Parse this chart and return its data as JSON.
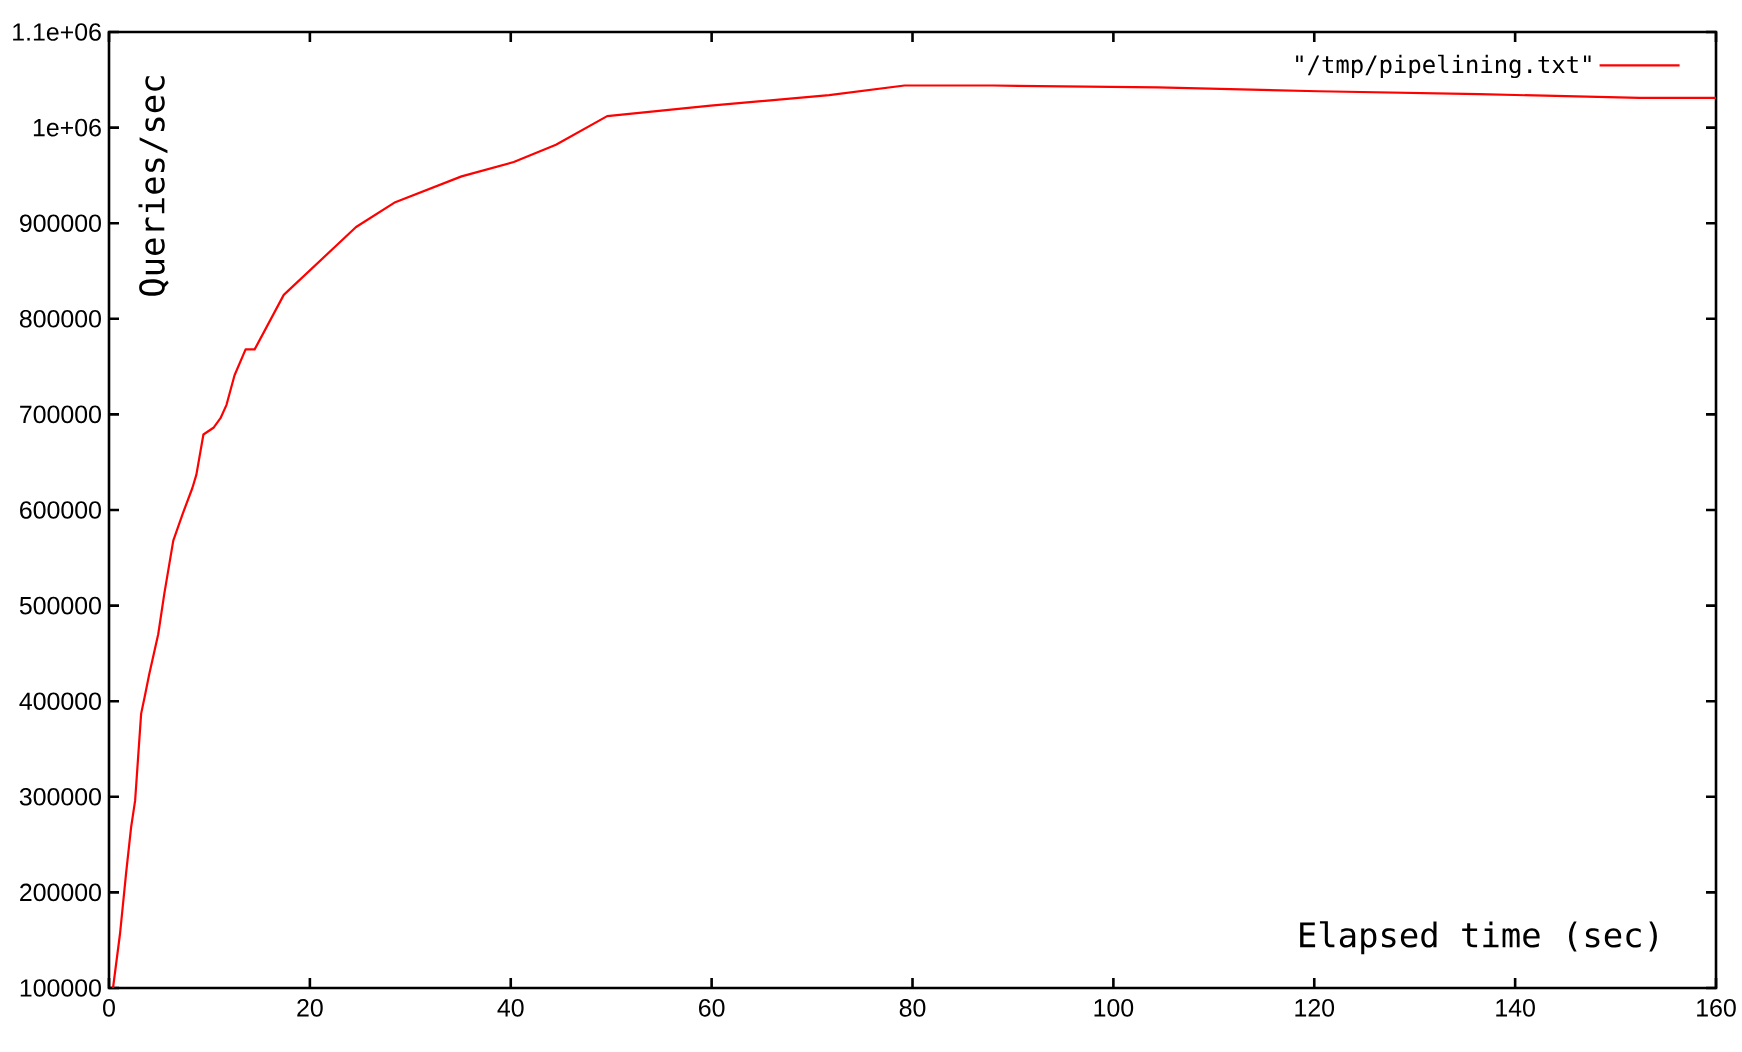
{
  "chart_data": {
    "type": "line",
    "xlabel": "Elapsed time (sec)",
    "ylabel": "Queries/sec",
    "x": [
      0.4,
      1.1,
      1.7,
      2.2,
      2.6,
      3.2,
      3.6,
      4.0,
      4.9,
      5.5,
      6.4,
      7.3,
      8.3,
      8.7,
      9.4,
      10.4,
      11.1,
      11.7,
      12.5,
      13.6,
      14.5,
      17.4,
      24.6,
      28.5,
      35.1,
      40.3,
      44.5,
      49.6,
      59.9,
      71.7,
      79.2,
      88.0,
      104.4,
      120.4,
      136.4,
      152.4,
      160
    ],
    "series": [
      {
        "name": "\"/tmp/pipelining.txt\"",
        "color": "#ff0000",
        "values": [
          100000,
          157000,
          220000,
          268000,
          296000,
          387000,
          407000,
          428000,
          470000,
          512000,
          568000,
          595000,
          623000,
          637000,
          679000,
          686000,
          696000,
          710000,
          741000,
          768000,
          768000,
          825000,
          896000,
          922000,
          949000,
          964000,
          982000,
          1012000,
          1023000,
          1034000,
          1044000,
          1044000,
          1042000,
          1038000,
          1035000,
          1031000,
          1031000
        ]
      }
    ],
    "xlim": [
      0,
      160
    ],
    "ylim": [
      100000,
      1100000
    ],
    "xticks": [
      0,
      20,
      40,
      60,
      80,
      100,
      120,
      140,
      160
    ],
    "yticks": [
      100000,
      200000,
      300000,
      400000,
      500000,
      600000,
      700000,
      800000,
      900000,
      {
        "value": 1000000,
        "label": "1e+06"
      },
      {
        "value": 1100000,
        "label": "1.1e+06"
      }
    ],
    "legend": "top right"
  }
}
